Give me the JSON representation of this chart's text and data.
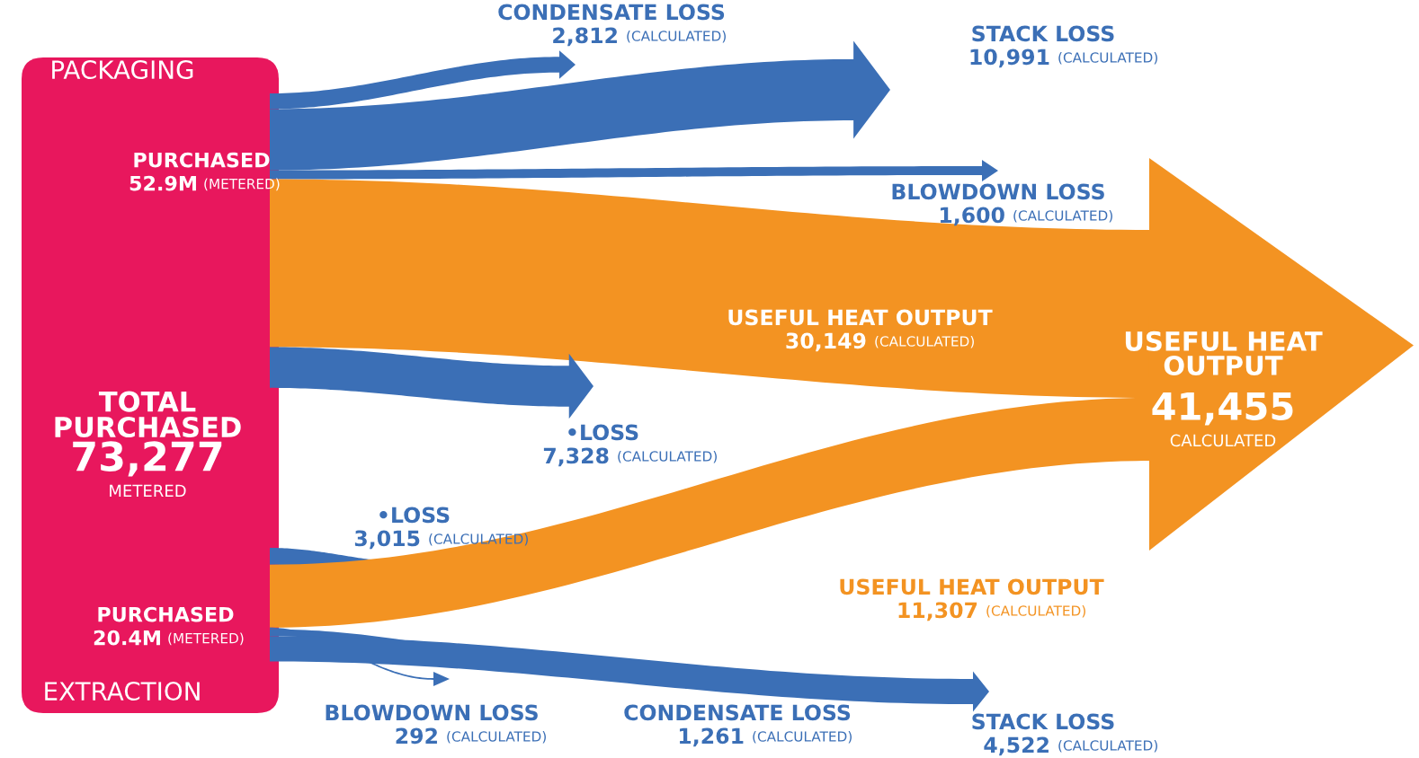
{
  "chart_data": {
    "type": "other",
    "categories": [
      "CONDENSATE LOSS",
      "STACK LOSS",
      "BLOWDOWN LOSS",
      "USEFUL HEAT OUTPUT",
      "•LOSS",
      "•LOSS",
      "USEFUL HEAT OUTPUT",
      "BLOWDOWN LOSS",
      "CONDENSATE LOSS",
      "STACK LOSS"
    ],
    "values": [
      2812,
      10991,
      1600,
      30149,
      7328,
      3015,
      11307,
      292,
      1261,
      4522
    ],
    "value_labels": [
      "2,812",
      "10,991",
      "1,600",
      "30,149",
      "7,328",
      "3,015",
      "11,307",
      "292",
      "1,261",
      "4,522"
    ],
    "colors": [
      "#3b6fb6",
      "#3b6fb6",
      "#3b6fb6",
      "#f39322",
      "#3b6fb6",
      "#3b6fb6",
      "#f39322",
      "#3b6fb6",
      "#3b6fb6",
      "#3b6fb6"
    ],
    "annotations": [
      "PACKAGING",
      "EXTRACTION",
      "PURCHASED",
      "52.9M",
      "(METERED)",
      "TOTAL\nPURCHASED",
      "73,277",
      "METERED",
      "PURCHASED",
      "20.4M",
      "(METERED)",
      "USEFUL HEAT\nOUTPUT",
      "41,455",
      "CALCULATED",
      "(CALCULATED)",
      "(CALCULATED)",
      "(CALCULATED)",
      "(CALCULATED)",
      "(CALCULATED)",
      "(CALCULATED)",
      "(CALCULATED)",
      "(CALCULATED)",
      "(CALCULATED)",
      "(CALCULATED)"
    ]
  }
}
